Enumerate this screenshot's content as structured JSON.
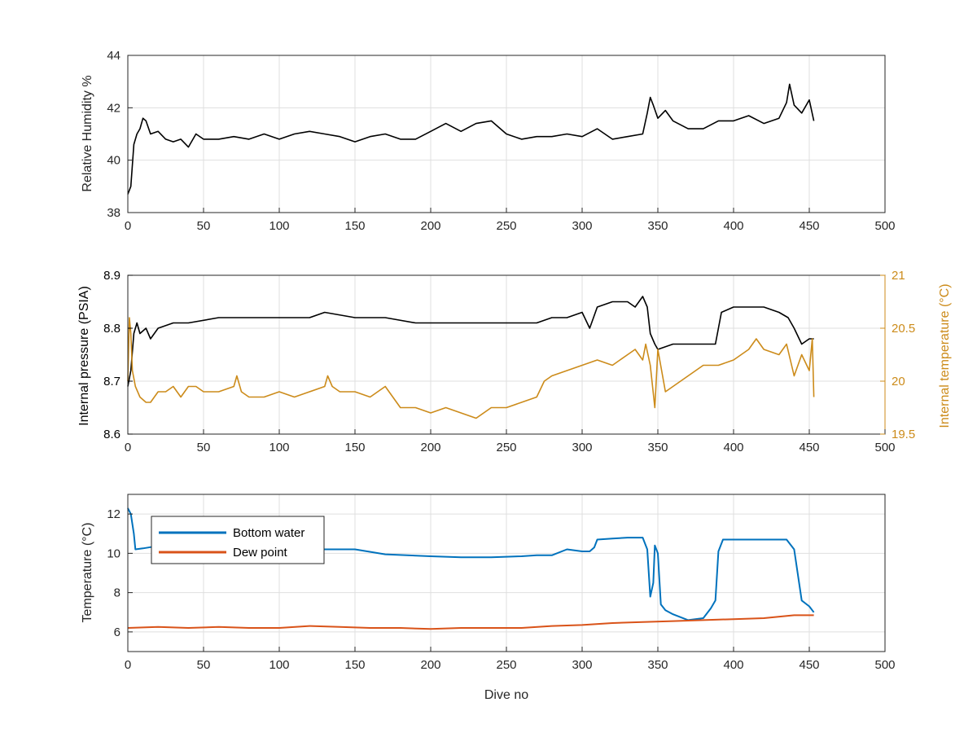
{
  "chart_data": [
    {
      "type": "line",
      "xlabel": "",
      "ylabel": "Relative Humidity %",
      "xlim": [
        0,
        500
      ],
      "ylim": [
        38,
        44
      ],
      "xticks": [
        "0",
        "50",
        "100",
        "150",
        "200",
        "250",
        "300",
        "350",
        "400",
        "450",
        "500"
      ],
      "yticks": [
        "38",
        "40",
        "42",
        "44"
      ],
      "grid": true,
      "series": [
        {
          "color": "#000000",
          "x": [
            0,
            2,
            4,
            6,
            8,
            10,
            12,
            15,
            20,
            25,
            30,
            35,
            40,
            45,
            50,
            60,
            70,
            80,
            90,
            100,
            110,
            120,
            130,
            140,
            150,
            160,
            170,
            180,
            190,
            200,
            210,
            220,
            230,
            240,
            250,
            260,
            270,
            280,
            290,
            300,
            310,
            320,
            330,
            340,
            343,
            345,
            347,
            350,
            355,
            360,
            370,
            380,
            390,
            400,
            410,
            420,
            430,
            435,
            437,
            440,
            445,
            450,
            453
          ],
          "y": [
            38.7,
            39.0,
            40.6,
            41.0,
            41.2,
            41.6,
            41.5,
            41.0,
            41.1,
            40.8,
            40.7,
            40.8,
            40.5,
            41.0,
            40.8,
            40.8,
            40.9,
            40.8,
            41.0,
            40.8,
            41.0,
            41.1,
            41.0,
            40.9,
            40.7,
            40.9,
            41.0,
            40.8,
            40.8,
            41.1,
            41.4,
            41.1,
            41.4,
            41.5,
            41.0,
            40.8,
            40.9,
            40.9,
            41.0,
            40.9,
            41.2,
            40.8,
            40.9,
            41.0,
            41.8,
            42.4,
            42.1,
            41.6,
            41.9,
            41.5,
            41.2,
            41.2,
            41.5,
            41.5,
            41.7,
            41.4,
            41.6,
            42.2,
            42.9,
            42.1,
            41.8,
            42.3,
            41.5
          ]
        }
      ]
    },
    {
      "type": "line",
      "xlabel": "",
      "ylabel": "Internal pressure (PSIA)",
      "y2label": "Internal temperature (°C)",
      "xlim": [
        0,
        500
      ],
      "ylim": [
        8.6,
        8.9
      ],
      "y2lim": [
        19.5,
        21
      ],
      "xticks": [
        "0",
        "50",
        "100",
        "150",
        "200",
        "250",
        "300",
        "350",
        "400",
        "450",
        "500"
      ],
      "yticks": [
        "8.6",
        "8.7",
        "8.8",
        "8.9"
      ],
      "y2ticks": [
        "19.5",
        "20",
        "20.5",
        "21"
      ],
      "grid": true,
      "series": [
        {
          "axis": "left",
          "color": "#000000",
          "x": [
            0,
            2,
            4,
            6,
            8,
            12,
            15,
            20,
            30,
            40,
            60,
            80,
            100,
            120,
            130,
            150,
            170,
            190,
            200,
            220,
            240,
            260,
            270,
            280,
            290,
            300,
            305,
            310,
            320,
            330,
            335,
            340,
            343,
            345,
            348,
            350,
            360,
            370,
            380,
            388,
            390,
            392,
            400,
            410,
            420,
            430,
            436,
            440,
            445,
            450,
            453
          ],
          "y": [
            8.69,
            8.72,
            8.79,
            8.81,
            8.79,
            8.8,
            8.78,
            8.8,
            8.81,
            8.81,
            8.82,
            8.82,
            8.82,
            8.82,
            8.83,
            8.82,
            8.82,
            8.81,
            8.81,
            8.81,
            8.81,
            8.81,
            8.81,
            8.82,
            8.82,
            8.83,
            8.8,
            8.84,
            8.85,
            8.85,
            8.84,
            8.86,
            8.84,
            8.79,
            8.77,
            8.76,
            8.77,
            8.77,
            8.77,
            8.77,
            8.8,
            8.83,
            8.84,
            8.84,
            8.84,
            8.83,
            8.82,
            8.8,
            8.77,
            8.78,
            8.78
          ]
        },
        {
          "axis": "right",
          "color": "#cc8b1a",
          "x": [
            0,
            1,
            2,
            3,
            5,
            8,
            12,
            15,
            20,
            25,
            30,
            35,
            40,
            45,
            50,
            60,
            70,
            72,
            75,
            80,
            90,
            100,
            110,
            120,
            130,
            132,
            135,
            140,
            150,
            160,
            170,
            175,
            180,
            190,
            200,
            210,
            220,
            230,
            240,
            250,
            260,
            270,
            275,
            280,
            290,
            300,
            310,
            320,
            330,
            335,
            340,
            342,
            345,
            348,
            350,
            355,
            360,
            370,
            375,
            380,
            390,
            400,
            410,
            415,
            420,
            430,
            435,
            440,
            445,
            450,
            452,
            453
          ],
          "y": [
            20.0,
            20.6,
            20.45,
            20.1,
            19.95,
            19.85,
            19.8,
            19.8,
            19.9,
            19.9,
            19.95,
            19.85,
            19.95,
            19.95,
            19.9,
            19.9,
            19.95,
            20.05,
            19.9,
            19.85,
            19.85,
            19.9,
            19.85,
            19.9,
            19.95,
            20.05,
            19.95,
            19.9,
            19.9,
            19.85,
            19.95,
            19.85,
            19.75,
            19.75,
            19.7,
            19.75,
            19.7,
            19.65,
            19.75,
            19.75,
            19.8,
            19.85,
            20.0,
            20.05,
            20.1,
            20.15,
            20.2,
            20.15,
            20.25,
            20.3,
            20.2,
            20.35,
            20.15,
            19.75,
            20.3,
            19.9,
            19.95,
            20.05,
            20.1,
            20.15,
            20.15,
            20.2,
            20.3,
            20.4,
            20.3,
            20.25,
            20.35,
            20.05,
            20.25,
            20.1,
            20.4,
            19.85
          ]
        }
      ]
    },
    {
      "type": "line",
      "xlabel": "Dive no",
      "ylabel": "Temperature (°C)",
      "xlim": [
        0,
        500
      ],
      "ylim": [
        5,
        13
      ],
      "xticks": [
        "0",
        "50",
        "100",
        "150",
        "200",
        "250",
        "300",
        "350",
        "400",
        "450",
        "500"
      ],
      "yticks": [
        "6",
        "8",
        "10",
        "12"
      ],
      "grid": true,
      "legend_position": "top-left",
      "series": [
        {
          "name": "Bottom water",
          "color": "#0072bd",
          "x": [
            0,
            2,
            4,
            5,
            10,
            30,
            60,
            100,
            130,
            150,
            170,
            200,
            220,
            240,
            260,
            270,
            280,
            290,
            300,
            305,
            308,
            310,
            320,
            330,
            340,
            343,
            345,
            347,
            348,
            350,
            352,
            355,
            360,
            370,
            380,
            385,
            388,
            390,
            393,
            400,
            420,
            435,
            440,
            445,
            450,
            453
          ],
          "y": [
            12.3,
            12.0,
            11.0,
            10.2,
            10.25,
            10.5,
            10.5,
            10.5,
            10.2,
            10.2,
            9.95,
            9.85,
            9.8,
            9.8,
            9.85,
            9.9,
            9.9,
            10.2,
            10.1,
            10.1,
            10.3,
            10.7,
            10.75,
            10.8,
            10.8,
            10.2,
            7.8,
            8.5,
            10.4,
            10.0,
            7.4,
            7.1,
            6.9,
            6.6,
            6.7,
            7.2,
            7.6,
            10.1,
            10.7,
            10.7,
            10.7,
            10.7,
            10.2,
            7.6,
            7.3,
            7.0
          ]
        },
        {
          "name": "Dew point",
          "color": "#d95319",
          "x": [
            0,
            20,
            40,
            60,
            80,
            100,
            120,
            140,
            160,
            180,
            200,
            220,
            240,
            260,
            280,
            300,
            320,
            340,
            360,
            380,
            400,
            420,
            440,
            453
          ],
          "y": [
            6.2,
            6.25,
            6.2,
            6.25,
            6.2,
            6.2,
            6.3,
            6.25,
            6.2,
            6.2,
            6.15,
            6.2,
            6.2,
            6.2,
            6.3,
            6.35,
            6.45,
            6.5,
            6.55,
            6.6,
            6.65,
            6.7,
            6.85,
            6.85
          ]
        }
      ]
    }
  ]
}
